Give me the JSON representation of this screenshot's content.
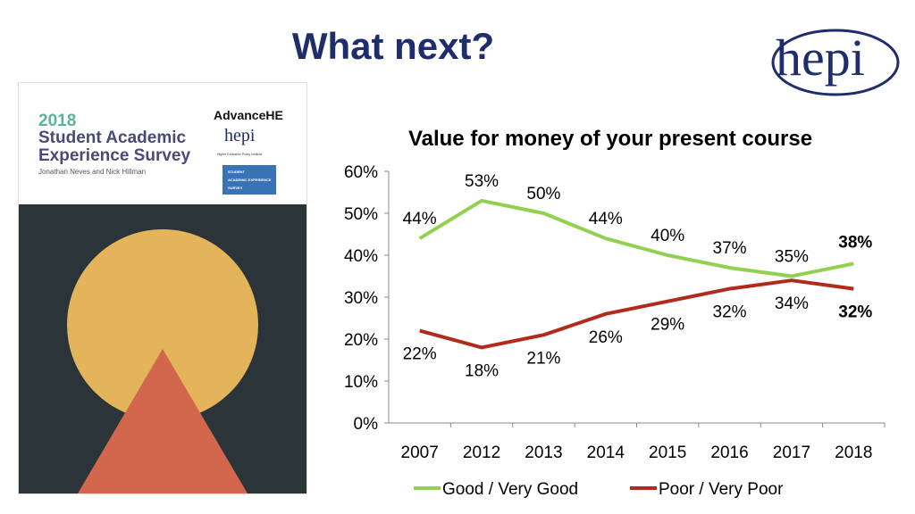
{
  "slide_title": "What next?",
  "logo_text": "hepi",
  "cover": {
    "year": "2018",
    "title_line1": "Student Academic",
    "title_line2": "Experience Survey",
    "authors": "Jonathan Neves and Nick Hillman",
    "partner1": "AdvanceHE",
    "partner2": "hepi",
    "partner2_sub": "Higher Education Policy Institute",
    "badge": [
      "STUDENT",
      "ACADEMIC EXPERIENCE",
      "SURVEY"
    ]
  },
  "chart_data": {
    "type": "line",
    "title": "Value for money of your present course",
    "categories": [
      "2007",
      "2012",
      "2013",
      "2014",
      "2015",
      "2016",
      "2017",
      "2018"
    ],
    "y_ticks": [
      "0%",
      "10%",
      "20%",
      "30%",
      "40%",
      "50%",
      "60%"
    ],
    "ylim": [
      0,
      60
    ],
    "legend_position": "bottom",
    "series": [
      {
        "name": "Good / Very Good",
        "color": "#92d050",
        "values": [
          44,
          53,
          50,
          44,
          40,
          37,
          35,
          38
        ],
        "labels": [
          "44%",
          "53%",
          "50%",
          "44%",
          "40%",
          "37%",
          "35%",
          "38%"
        ]
      },
      {
        "name": "Poor / Very Poor",
        "color": "#b22a1c",
        "values": [
          22,
          18,
          21,
          26,
          29,
          32,
          34,
          32
        ],
        "labels": [
          "22%",
          "18%",
          "21%",
          "26%",
          "29%",
          "32%",
          "34%",
          "32%"
        ]
      }
    ]
  }
}
